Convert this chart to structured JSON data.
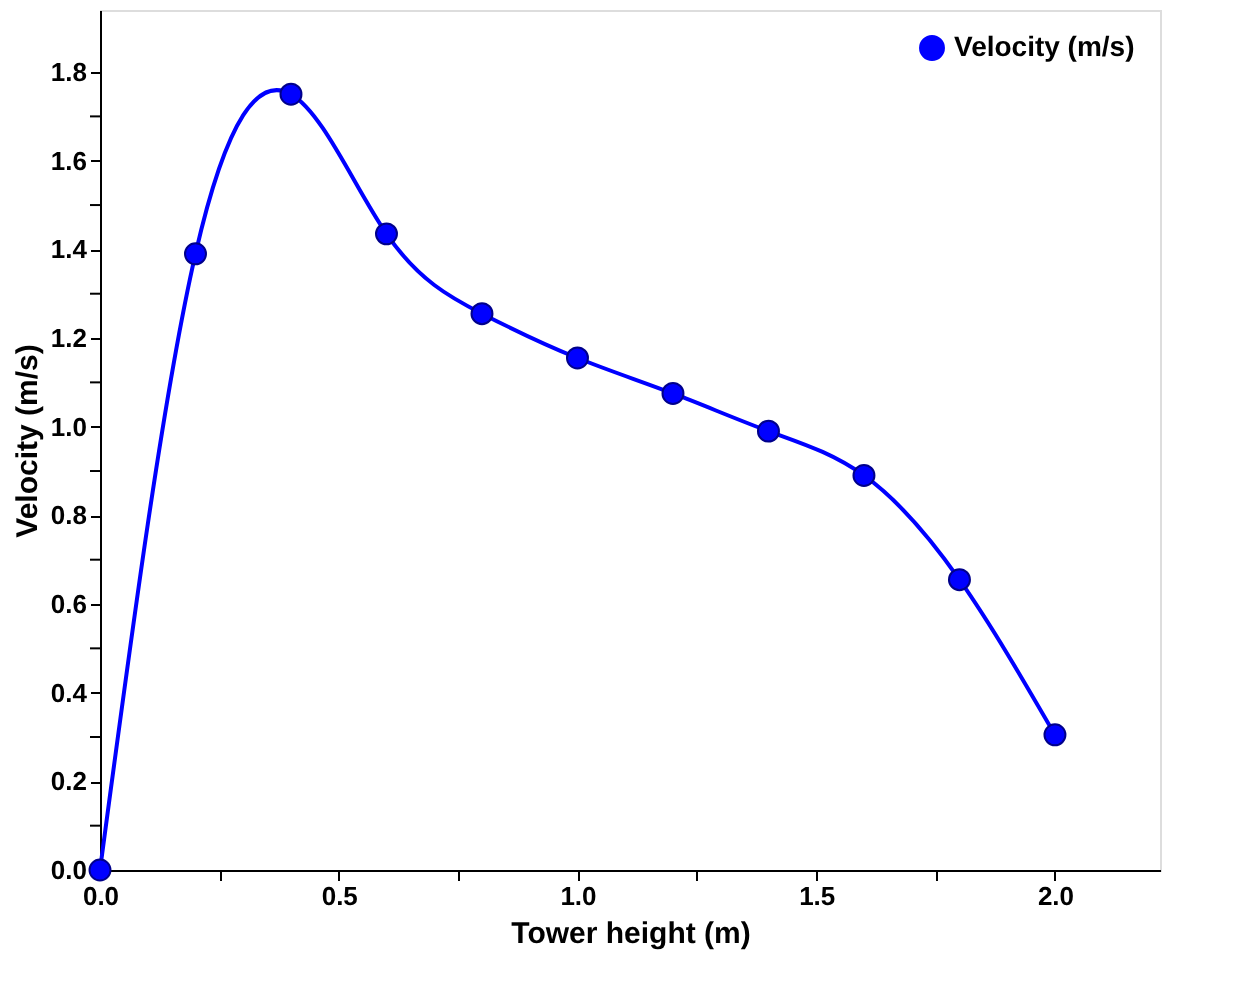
{
  "chart_data": {
    "type": "line",
    "xlabel": "Tower height (m)",
    "ylabel": "Velocity (m/s)",
    "x": [
      0,
      0.2,
      0.4,
      0.6,
      0.8,
      1.0,
      1.2,
      1.4,
      1.6,
      1.8,
      2.0
    ],
    "series": [
      {
        "name": "Velocity (m/s)",
        "color": "#0000ff",
        "values": [
          0,
          1.39,
          1.75,
          1.435,
          1.255,
          1.155,
          1.075,
          0.99,
          0.89,
          0.655,
          0.305
        ]
      }
    ],
    "xlim": [
      0,
      2.22
    ],
    "ylim": [
      0,
      1.94
    ],
    "xticks": [
      {
        "value": 0,
        "label": "0.0"
      },
      {
        "value": 0.25,
        "label": null
      },
      {
        "value": 0.5,
        "label": "0.5"
      },
      {
        "value": 0.75,
        "label": null
      },
      {
        "value": 1,
        "label": "1.0"
      },
      {
        "value": 1.25,
        "label": null
      },
      {
        "value": 1.5,
        "label": "1.5"
      },
      {
        "value": 1.75,
        "label": null
      },
      {
        "value": 2,
        "label": "2.0"
      }
    ],
    "yticks": [
      {
        "value": 0,
        "label": "0.0"
      },
      {
        "value": 0.1,
        "label": null
      },
      {
        "value": 0.2,
        "label": "0.2"
      },
      {
        "value": 0.3,
        "label": null
      },
      {
        "value": 0.4,
        "label": "0.4"
      },
      {
        "value": 0.5,
        "label": null
      },
      {
        "value": 0.6,
        "label": "0.6"
      },
      {
        "value": 0.7,
        "label": null
      },
      {
        "value": 0.8,
        "label": "0.8"
      },
      {
        "value": 0.9,
        "label": null
      },
      {
        "value": 1,
        "label": "1.0"
      },
      {
        "value": 1.1,
        "label": null
      },
      {
        "value": 1.2,
        "label": "1.2"
      },
      {
        "value": 1.3,
        "label": null
      },
      {
        "value": 1.4,
        "label": "1.4"
      },
      {
        "value": 1.5,
        "label": null
      },
      {
        "value": 1.6,
        "label": "1.6"
      },
      {
        "value": 1.7,
        "label": null
      },
      {
        "value": 1.8,
        "label": "1.8"
      }
    ],
    "marker": "circle",
    "line_style": "solid",
    "legend": "top right",
    "grid": false
  }
}
